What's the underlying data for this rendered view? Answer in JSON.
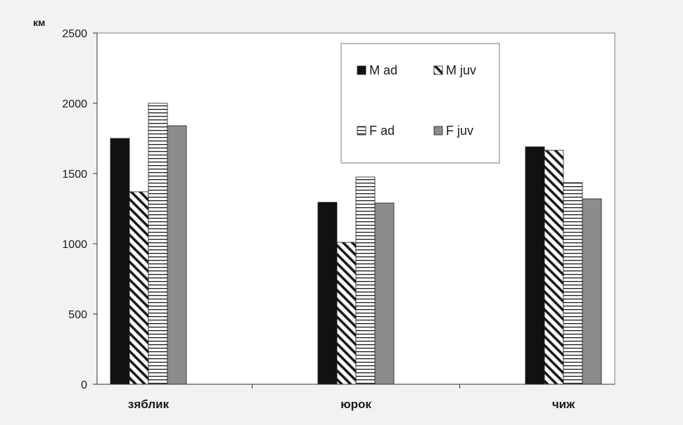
{
  "chart_data": {
    "type": "bar",
    "ylabel": "км",
    "ylim": [
      0,
      2500
    ],
    "yticks": [
      0,
      500,
      1000,
      1500,
      2000,
      2500
    ],
    "categories": [
      "зяблик",
      "юрок",
      "чиж"
    ],
    "series": [
      {
        "name": "M ad",
        "values": [
          1750,
          1295,
          1690
        ],
        "fill": "black"
      },
      {
        "name": "M juv",
        "values": [
          1370,
          1010,
          1665
        ],
        "fill": "diagonal-hatch"
      },
      {
        "name": "F ad",
        "values": [
          2000,
          1475,
          1435
        ],
        "fill": "horizontal-lines"
      },
      {
        "name": "F juv",
        "values": [
          1840,
          1290,
          1320
        ],
        "fill": "gray"
      }
    ],
    "grid": false,
    "legend": "top-center",
    "colors": {
      "m_ad": "#111111",
      "f_juv": "#8c8c8c",
      "plot_bg": "#ffffff",
      "frame_bg": "#f2f2f2"
    }
  }
}
